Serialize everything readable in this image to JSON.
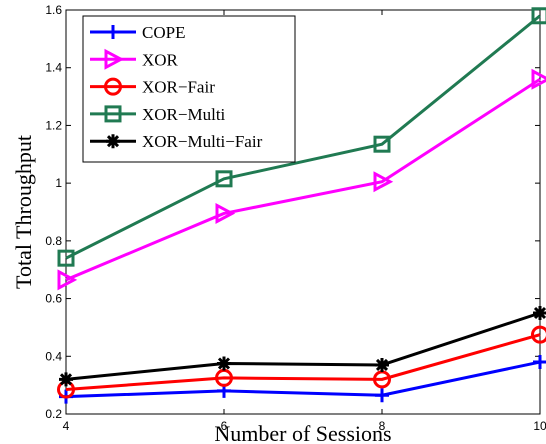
{
  "chart_data": {
    "type": "line",
    "title": "",
    "xlabel": "Number of Sessions",
    "ylabel": "Total Throughput",
    "xlim": [
      4,
      10
    ],
    "ylim": [
      0.2,
      1.6
    ],
    "xticks": [
      4,
      6,
      8,
      10
    ],
    "yticks": [
      0.2,
      0.4,
      0.6,
      0.8,
      1,
      1.2,
      1.4,
      1.6
    ],
    "grid": false,
    "legend_position": "top-left",
    "x": [
      4,
      6,
      8,
      10
    ],
    "series": [
      {
        "name": "COPE",
        "values": [
          0.26,
          0.28,
          0.265,
          0.38
        ],
        "color": "#0000ff",
        "marker": "plus"
      },
      {
        "name": "XOR",
        "values": [
          0.665,
          0.895,
          1.005,
          1.36
        ],
        "color": "#ff00ff",
        "marker": "triangle-right"
      },
      {
        "name": "XOR−Fair",
        "values": [
          0.285,
          0.325,
          0.32,
          0.475
        ],
        "color": "#ff0000",
        "marker": "circle"
      },
      {
        "name": "XOR−Multi",
        "values": [
          0.74,
          1.015,
          1.135,
          1.58
        ],
        "color": "#207a52",
        "marker": "square"
      },
      {
        "name": "XOR−Multi−Fair",
        "values": [
          0.32,
          0.375,
          0.37,
          0.55
        ],
        "color": "#000000",
        "marker": "star"
      }
    ]
  }
}
